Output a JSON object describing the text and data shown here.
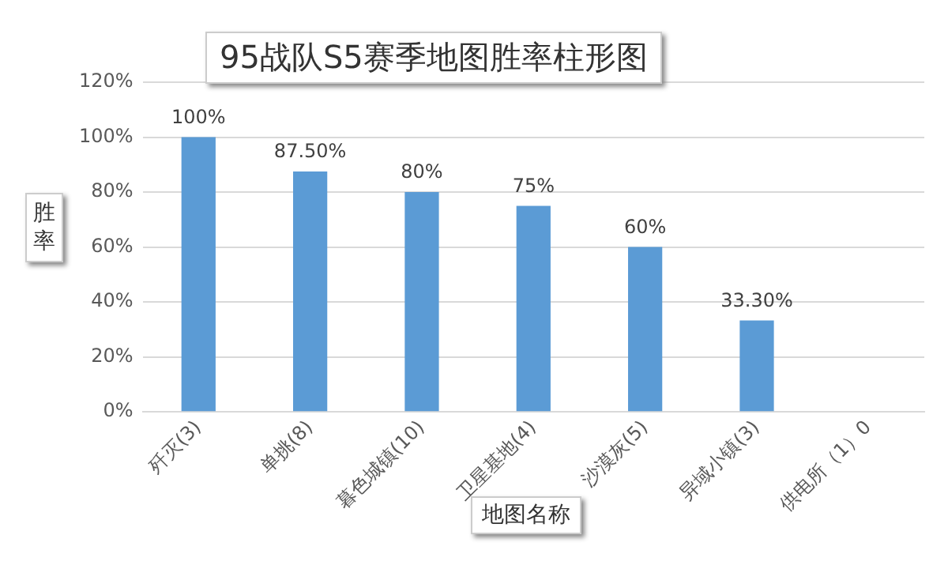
{
  "chart_data": {
    "type": "bar",
    "title": "95战队S5赛季地图胜率柱形图",
    "xlabel": "地图名称",
    "ylabel": "胜率",
    "categories": [
      "歼灭(3)",
      "单挑(8)",
      "暮色城镇(10)",
      "卫星基地(4)",
      "沙漠灰(5)",
      "异域小镇(3)",
      "供电所（1）0"
    ],
    "values": [
      100,
      87.5,
      80,
      75,
      60,
      33.3,
      0
    ],
    "value_labels": [
      "100%",
      "87.50%",
      "80%",
      "75%",
      "60%",
      "33.30%",
      null
    ],
    "color": "#5b9bd5",
    "ylim": [
      0,
      120
    ],
    "yticks": [
      {
        "value": 0,
        "label": "0%"
      },
      {
        "value": 20,
        "label": "20%"
      },
      {
        "value": 40,
        "label": "40%"
      },
      {
        "value": 60,
        "label": "60%"
      },
      {
        "value": 80,
        "label": "80%"
      },
      {
        "value": 100,
        "label": "100%"
      },
      {
        "value": 120,
        "label": "120%"
      }
    ],
    "grid": "y",
    "legend": false
  }
}
